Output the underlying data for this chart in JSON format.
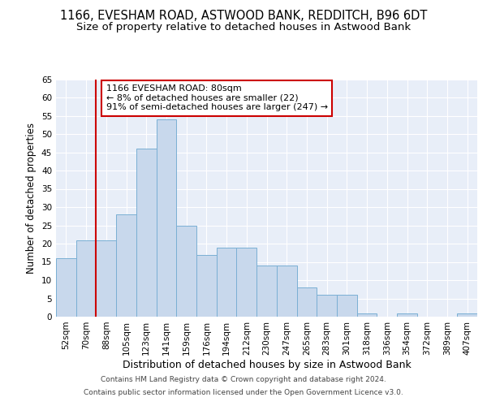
{
  "title_line1": "1166, EVESHAM ROAD, ASTWOOD BANK, REDDITCH, B96 6DT",
  "title_line2": "Size of property relative to detached houses in Astwood Bank",
  "xlabel": "Distribution of detached houses by size in Astwood Bank",
  "ylabel": "Number of detached properties",
  "categories": [
    "52sqm",
    "70sqm",
    "88sqm",
    "105sqm",
    "123sqm",
    "141sqm",
    "159sqm",
    "176sqm",
    "194sqm",
    "212sqm",
    "230sqm",
    "247sqm",
    "265sqm",
    "283sqm",
    "301sqm",
    "318sqm",
    "336sqm",
    "354sqm",
    "372sqm",
    "389sqm",
    "407sqm"
  ],
  "values": [
    16,
    21,
    21,
    28,
    46,
    54,
    25,
    17,
    19,
    19,
    14,
    14,
    8,
    6,
    6,
    1,
    0,
    1,
    0,
    0,
    1
  ],
  "bar_color": "#c8d8ec",
  "bar_edge_color": "#7aafd4",
  "annotation_text": "1166 EVESHAM ROAD: 80sqm\n← 8% of detached houses are smaller (22)\n91% of semi-detached houses are larger (247) →",
  "annotation_box_color": "#ffffff",
  "annotation_box_edge": "#cc0000",
  "vline_color": "#cc0000",
  "vline_x": 1.5,
  "ylim": [
    0,
    65
  ],
  "yticks": [
    0,
    5,
    10,
    15,
    20,
    25,
    30,
    35,
    40,
    45,
    50,
    55,
    60,
    65
  ],
  "plot_bg_color": "#e8eef8",
  "footer_line1": "Contains HM Land Registry data © Crown copyright and database right 2024.",
  "footer_line2": "Contains public sector information licensed under the Open Government Licence v3.0.",
  "title_fontsize": 10.5,
  "subtitle_fontsize": 9.5,
  "tick_fontsize": 7.5,
  "xlabel_fontsize": 9,
  "ylabel_fontsize": 8.5,
  "footer_fontsize": 6.5,
  "annotation_fontsize": 8
}
